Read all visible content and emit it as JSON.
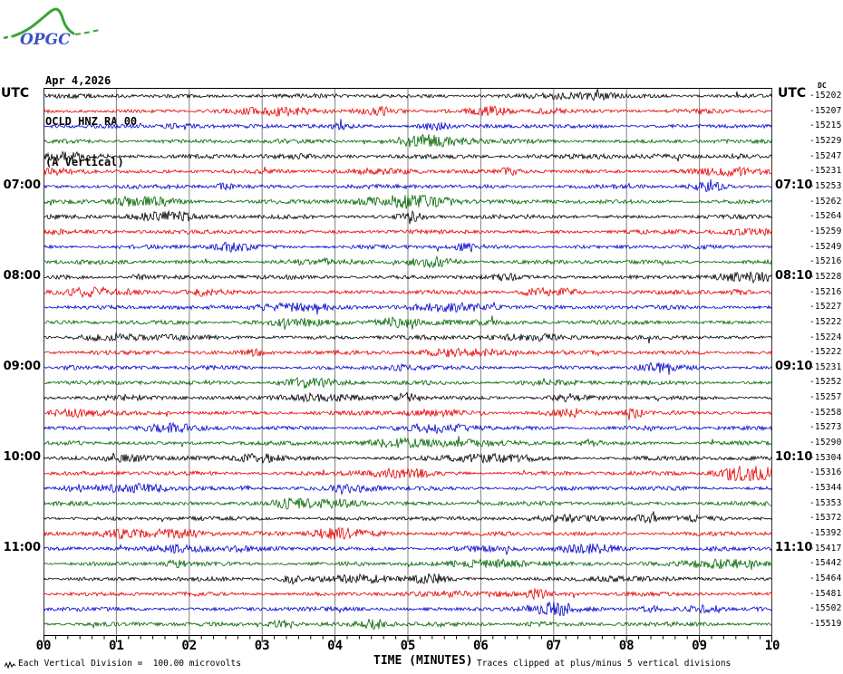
{
  "logo": {
    "text": "OPGC",
    "curve_color": "#3aa33a",
    "text_color": "#3b52c4"
  },
  "header": {
    "date": "Apr 4,2026",
    "station": "OCLD HNZ RA 00",
    "component": "(A Vertical)"
  },
  "labels": {
    "utc_left": "UTC",
    "utc_right": "UTC",
    "dc": "DC"
  },
  "x_axis": {
    "title": "TIME (MINUTES)",
    "ticks": [
      "00",
      "01",
      "02",
      "03",
      "04",
      "05",
      "06",
      "07",
      "08",
      "09",
      "10"
    ]
  },
  "footer": {
    "left_note": "Each Vertical Division =  100.00 microvolts",
    "right_note": "Traces clipped at plus/minus 5 vertical divisions"
  },
  "colors": {
    "trace_cycle": [
      "#000000",
      "#e60000",
      "#0000cc",
      "#006600"
    ],
    "grid": "#808080",
    "border": "#333333",
    "axis": "#000000"
  },
  "rows": [
    {
      "left": "",
      "right": "",
      "value": "-15202"
    },
    {
      "left": "",
      "right": "",
      "value": "-15207"
    },
    {
      "left": "",
      "right": "",
      "value": "-15215"
    },
    {
      "left": "",
      "right": "",
      "value": "-15229"
    },
    {
      "left": "",
      "right": "",
      "value": "-15247"
    },
    {
      "left": "",
      "right": "",
      "value": "-15231"
    },
    {
      "left": "07:00",
      "right": "07:10",
      "value": "-15253"
    },
    {
      "left": "",
      "right": "",
      "value": "-15262"
    },
    {
      "left": "",
      "right": "",
      "value": "-15264"
    },
    {
      "left": "",
      "right": "",
      "value": "-15259"
    },
    {
      "left": "",
      "right": "",
      "value": "-15249"
    },
    {
      "left": "",
      "right": "",
      "value": "-15216"
    },
    {
      "left": "08:00",
      "right": "08:10",
      "value": "-15228"
    },
    {
      "left": "",
      "right": "",
      "value": "-15216"
    },
    {
      "left": "",
      "right": "",
      "value": "-15227"
    },
    {
      "left": "",
      "right": "",
      "value": "-15222"
    },
    {
      "left": "",
      "right": "",
      "value": "-15224"
    },
    {
      "left": "",
      "right": "",
      "value": "-15222"
    },
    {
      "left": "09:00",
      "right": "09:10",
      "value": "-15231"
    },
    {
      "left": "",
      "right": "",
      "value": "-15252"
    },
    {
      "left": "",
      "right": "",
      "value": "-15257"
    },
    {
      "left": "",
      "right": "",
      "value": "-15258"
    },
    {
      "left": "",
      "right": "",
      "value": "-15273"
    },
    {
      "left": "",
      "right": "",
      "value": "-15290"
    },
    {
      "left": "10:00",
      "right": "10:10",
      "value": "-15304"
    },
    {
      "left": "",
      "right": "",
      "value": "-15316"
    },
    {
      "left": "",
      "right": "",
      "value": "-15344"
    },
    {
      "left": "",
      "right": "",
      "value": "-15353"
    },
    {
      "left": "",
      "right": "",
      "value": "-15372"
    },
    {
      "left": "",
      "right": "",
      "value": "-15392"
    },
    {
      "left": "11:00",
      "right": "11:10",
      "value": "-15417"
    },
    {
      "left": "",
      "right": "",
      "value": "-15442"
    },
    {
      "left": "",
      "right": "",
      "value": "-15464"
    },
    {
      "left": "",
      "right": "",
      "value": "-15481"
    },
    {
      "left": "",
      "right": "",
      "value": "-15502"
    },
    {
      "left": "",
      "right": "",
      "value": "-15519"
    }
  ],
  "chart_data": {
    "type": "line",
    "title": "OCLD HNZ RA 00 (A Vertical) - Apr 4,2026",
    "xlabel": "TIME (MINUTES)",
    "x_range_minutes": [
      0,
      10
    ],
    "x_ticks": [
      "00",
      "01",
      "02",
      "03",
      "04",
      "05",
      "06",
      "07",
      "08",
      "09",
      "10"
    ],
    "minor_ticks_per_minute": 5,
    "n_traces": 36,
    "traces_per_hour": 6,
    "left_time_labels": [
      "07:00",
      "08:00",
      "09:00",
      "10:00",
      "11:00"
    ],
    "right_time_labels": [
      "07:10",
      "08:10",
      "09:10",
      "10:10",
      "11:10"
    ],
    "trace_color_cycle": [
      "black",
      "red",
      "blue",
      "green"
    ],
    "dc_offsets": [
      -15202,
      -15207,
      -15215,
      -15229,
      -15247,
      -15231,
      -15253,
      -15262,
      -15264,
      -15259,
      -15249,
      -15216,
      -15228,
      -15216,
      -15227,
      -15222,
      -15224,
      -15222,
      -15231,
      -15252,
      -15257,
      -15258,
      -15273,
      -15290,
      -15304,
      -15316,
      -15344,
      -15353,
      -15372,
      -15392,
      -15417,
      -15442,
      -15464,
      -15481,
      -15502,
      -15519
    ],
    "vertical_division_microvolts": 100.0,
    "clip_divisions": 5,
    "content": "continuous low-amplitude seismic background noise on all traces"
  }
}
